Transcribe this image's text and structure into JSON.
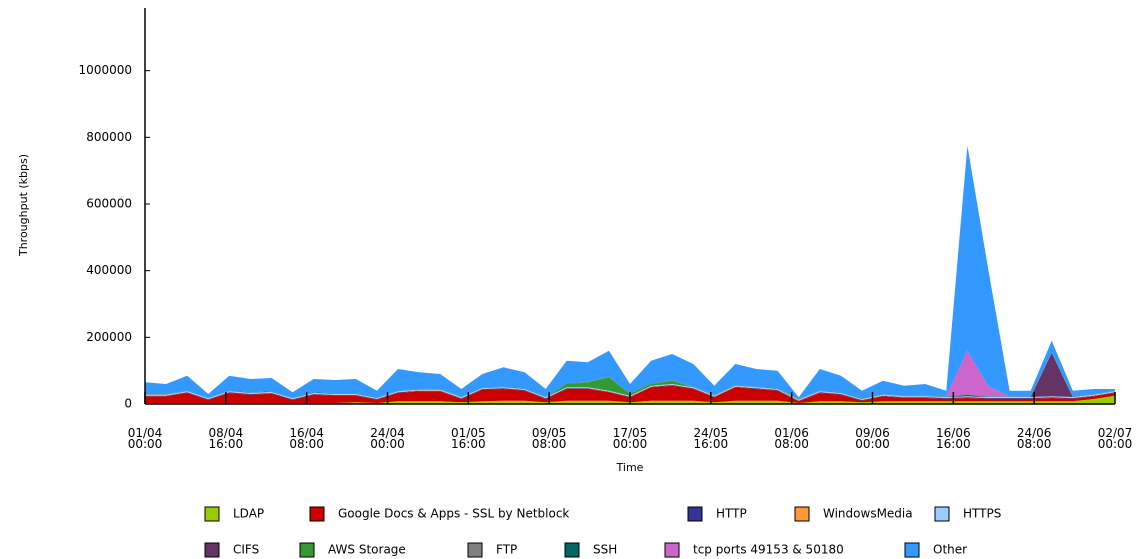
{
  "chart_data": {
    "type": "stacked_area",
    "y_label": "Throughput (kbps)",
    "x_label": "Time",
    "x": [
      "01/04 00:00",
      "03/04 00:00",
      "05/04 00:00",
      "07/04 00:00",
      "09/04 00:00",
      "11/04 00:00",
      "13/04 00:00",
      "15/04 00:00",
      "17/04 00:00",
      "19/04 00:00",
      "21/04 00:00",
      "23/04 00:00",
      "25/04 00:00",
      "27/04 00:00",
      "29/04 00:00",
      "01/05 00:00",
      "03/05 00:00",
      "05/05 00:00",
      "07/05 00:00",
      "09/05 00:00",
      "11/05 00:00",
      "13/05 00:00",
      "15/05 00:00",
      "17/05 00:00",
      "19/05 00:00",
      "21/05 00:00",
      "23/05 00:00",
      "25/05 00:00",
      "27/05 00:00",
      "29/05 00:00",
      "31/05 00:00",
      "02/06 00:00",
      "04/06 00:00",
      "06/06 00:00",
      "08/06 00:00",
      "10/06 00:00",
      "12/06 00:00",
      "14/06 00:00",
      "16/06 00:00",
      "18/06 00:00",
      "20/06 00:00",
      "22/06 00:00",
      "24/06 00:00",
      "26/06 00:00",
      "28/06 00:00",
      "30/06 00:00",
      "02/07 00:00"
    ],
    "xlim": [
      "01/04 00:00",
      "02/07 00:00"
    ],
    "xticks": [
      "01/04 00:00",
      "08/04 16:00",
      "16/04 08:00",
      "24/04 00:00",
      "01/05 16:00",
      "09/05 08:00",
      "17/05 00:00",
      "24/05 16:00",
      "01/06 08:00",
      "09/06 00:00",
      "16/06 16:00",
      "24/06 08:00",
      "02/07 00:00"
    ],
    "ylim": [
      0,
      1200000
    ],
    "yticks": [
      0,
      200000,
      400000,
      600000,
      800000,
      1000000
    ],
    "grid": false,
    "series": [
      {
        "name": "LDAP",
        "color": "#99cc00",
        "values": [
          3000,
          3000,
          3000,
          2000,
          3000,
          3000,
          3000,
          2000,
          3000,
          3000,
          5000,
          3000,
          8000,
          8000,
          8000,
          5000,
          8000,
          10000,
          10000,
          5000,
          10000,
          10000,
          10000,
          5000,
          10000,
          10000,
          10000,
          5000,
          10000,
          10000,
          10000,
          3000,
          8000,
          8000,
          5000,
          8000,
          8000,
          8000,
          8000,
          8000,
          8000,
          8000,
          8000,
          8000,
          8000,
          15000,
          25000
        ]
      },
      {
        "name": "Google Docs & Apps - SSL by Netblock",
        "color": "#cc0000",
        "values": [
          20000,
          20000,
          30000,
          10000,
          30000,
          25000,
          28000,
          10000,
          25000,
          22000,
          20000,
          10000,
          25000,
          30000,
          30000,
          10000,
          35000,
          35000,
          30000,
          10000,
          35000,
          35000,
          25000,
          15000,
          40000,
          45000,
          35000,
          15000,
          40000,
          35000,
          30000,
          5000,
          25000,
          20000,
          5000,
          15000,
          10000,
          10000,
          8000,
          10000,
          8000,
          8000,
          8000,
          10000,
          8000,
          8000,
          8000
        ]
      },
      {
        "name": "HTTP",
        "color": "#333399",
        "values": [
          2000,
          2000,
          2000,
          2000,
          2000,
          2000,
          2000,
          2000,
          2000,
          2000,
          2000,
          2000,
          2000,
          2000,
          2000,
          2000,
          2000,
          2000,
          2000,
          2000,
          2000,
          2000,
          2000,
          2000,
          2000,
          2000,
          2000,
          2000,
          2000,
          2000,
          2000,
          2000,
          2000,
          2000,
          2000,
          2000,
          2000,
          2000,
          2000,
          2000,
          2000,
          2000,
          2000,
          2000,
          2000,
          2000,
          2000
        ]
      },
      {
        "name": "WindowsMedia",
        "color": "#ff9933",
        "values": [
          1000,
          1000,
          1000,
          1000,
          1000,
          1000,
          1000,
          1000,
          1000,
          1000,
          1000,
          1000,
          1000,
          1000,
          1000,
          1000,
          1000,
          1000,
          1000,
          1000,
          1000,
          1000,
          1000,
          1000,
          1000,
          1000,
          1000,
          1000,
          1000,
          1000,
          1000,
          1000,
          1000,
          1000,
          1000,
          1000,
          1000,
          1000,
          1000,
          1000,
          1000,
          1000,
          1000,
          1000,
          1000,
          1000,
          1000
        ]
      },
      {
        "name": "HTTPS",
        "color": "#99ccff",
        "values": [
          2000,
          2000,
          2000,
          2000,
          2000,
          2000,
          2000,
          2000,
          2000,
          2000,
          2000,
          2000,
          2000,
          2000,
          2000,
          2000,
          2000,
          2000,
          2000,
          2000,
          2000,
          2000,
          2000,
          2000,
          2000,
          2000,
          2000,
          2000,
          2000,
          2000,
          2000,
          2000,
          2000,
          2000,
          2000,
          2000,
          2000,
          2000,
          2000,
          2000,
          2000,
          2000,
          2000,
          2000,
          2000,
          2000,
          2000
        ]
      },
      {
        "name": "CIFS",
        "color": "#663366",
        "values": [
          0,
          0,
          0,
          0,
          0,
          0,
          0,
          0,
          0,
          0,
          0,
          0,
          0,
          0,
          0,
          0,
          0,
          0,
          0,
          0,
          0,
          0,
          0,
          0,
          0,
          0,
          0,
          0,
          0,
          0,
          0,
          0,
          0,
          0,
          0,
          0,
          0,
          0,
          0,
          5000,
          0,
          0,
          0,
          130000,
          0,
          0,
          0
        ]
      },
      {
        "name": "AWS Storage",
        "color": "#339933",
        "values": [
          0,
          0,
          0,
          0,
          0,
          0,
          0,
          0,
          0,
          0,
          0,
          0,
          0,
          0,
          0,
          0,
          0,
          0,
          0,
          0,
          10000,
          15000,
          40000,
          5000,
          5000,
          10000,
          0,
          0,
          0,
          0,
          0,
          0,
          0,
          0,
          0,
          0,
          0,
          0,
          0,
          0,
          0,
          0,
          0,
          0,
          0,
          0,
          0
        ]
      },
      {
        "name": "FTP",
        "color": "#808080",
        "values": [
          1000,
          1000,
          1000,
          1000,
          1000,
          1000,
          1000,
          1000,
          1000,
          1000,
          1000,
          1000,
          1000,
          1000,
          1000,
          1000,
          1000,
          1000,
          1000,
          1000,
          1000,
          1000,
          1000,
          1000,
          1000,
          1000,
          1000,
          1000,
          1000,
          1000,
          1000,
          1000,
          1000,
          1000,
          1000,
          1000,
          1000,
          1000,
          1000,
          1000,
          1000,
          1000,
          1000,
          1000,
          1000,
          1000,
          1000
        ]
      },
      {
        "name": "SSH",
        "color": "#006666",
        "values": [
          1000,
          1000,
          1000,
          1000,
          1000,
          1000,
          1000,
          1000,
          1000,
          1000,
          1000,
          1000,
          1000,
          1000,
          1000,
          1000,
          1000,
          1000,
          1000,
          1000,
          1000,
          1000,
          1000,
          1000,
          1000,
          1000,
          1000,
          1000,
          1000,
          1000,
          1000,
          1000,
          1000,
          1000,
          1000,
          1000,
          1000,
          1000,
          1000,
          1000,
          1000,
          1000,
          1000,
          1000,
          1000,
          1000,
          1000
        ]
      },
      {
        "name": "tcp ports 49153 & 50180",
        "color": "#cc66cc",
        "values": [
          0,
          0,
          0,
          0,
          0,
          0,
          0,
          0,
          0,
          0,
          0,
          0,
          0,
          0,
          0,
          0,
          0,
          0,
          0,
          0,
          0,
          0,
          0,
          0,
          0,
          0,
          0,
          0,
          0,
          0,
          0,
          0,
          0,
          0,
          0,
          0,
          0,
          0,
          0,
          130000,
          30000,
          0,
          0,
          0,
          0,
          0,
          0
        ]
      },
      {
        "name": "Other",
        "color": "#3399ff",
        "values": [
          35000,
          30000,
          45000,
          11000,
          45000,
          40000,
          40000,
          16000,
          40000,
          40000,
          43000,
          20000,
          65000,
          50000,
          45000,
          23000,
          40000,
          58000,
          48000,
          23000,
          68000,
          58000,
          78000,
          28000,
          68000,
          78000,
          68000,
          28000,
          63000,
          53000,
          53000,
          5000,
          65000,
          50000,
          23000,
          40000,
          30000,
          35000,
          17000,
          615000,
          347000,
          17000,
          17000,
          35000,
          17000,
          15000,
          5000
        ]
      }
    ]
  }
}
